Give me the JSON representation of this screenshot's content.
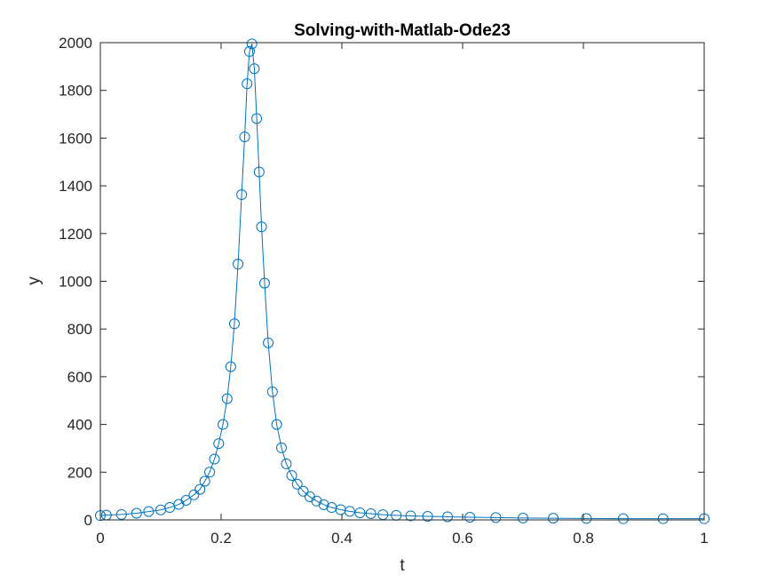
{
  "chart_data": {
    "type": "line",
    "title": "Solving-with-Matlab-Ode23",
    "xlabel": "t",
    "ylabel": "y",
    "xlim": [
      0,
      1
    ],
    "ylim": [
      0,
      2000
    ],
    "xticks": [
      0,
      0.2,
      0.4,
      0.6,
      0.8,
      1
    ],
    "xtick_labels": [
      "0",
      "0.2",
      "0.4",
      "0.6",
      "0.8",
      "1"
    ],
    "yticks": [
      0,
      200,
      400,
      600,
      800,
      1000,
      1200,
      1400,
      1600,
      1800,
      2000
    ],
    "ytick_labels": [
      "0",
      "200",
      "400",
      "600",
      "800",
      "1000",
      "1200",
      "1400",
      "1600",
      "1800",
      "2000"
    ],
    "grid": false,
    "marker": "circle",
    "color": "#0072BD",
    "series": [
      {
        "x": [
          0,
          0.01,
          0.035,
          0.06,
          0.08,
          0.1,
          0.115,
          0.13,
          0.142,
          0.155,
          0.165,
          0.173,
          0.181,
          0.189,
          0.196,
          0.203,
          0.21,
          0.216,
          0.222,
          0.228,
          0.234,
          0.239,
          0.243,
          0.247,
          0.251,
          0.255,
          0.259,
          0.263,
          0.267,
          0.272,
          0.278,
          0.285,
          0.292,
          0.3,
          0.308,
          0.317,
          0.326,
          0.336,
          0.347,
          0.358,
          0.37,
          0.383,
          0.398,
          0.413,
          0.43,
          0.448,
          0.468,
          0.49,
          0.514,
          0.542,
          0.575,
          0.612,
          0.655,
          0.7,
          0.75,
          0.805,
          0.866,
          0.932,
          1.0
        ],
        "y": [
          18,
          20,
          23,
          28,
          35,
          42,
          52,
          65,
          82,
          105,
          128,
          162,
          200,
          255,
          320,
          400,
          508,
          642,
          822,
          1072,
          1363,
          1605,
          1828,
          1963,
          1995,
          1891,
          1682,
          1458,
          1228,
          992,
          742,
          537,
          400,
          302,
          235,
          186,
          150,
          120,
          97,
          79,
          64,
          52,
          43,
          36,
          30,
          26,
          22,
          19,
          17,
          15,
          13,
          11,
          10,
          8,
          7,
          6,
          5,
          5,
          5
        ]
      }
    ]
  }
}
